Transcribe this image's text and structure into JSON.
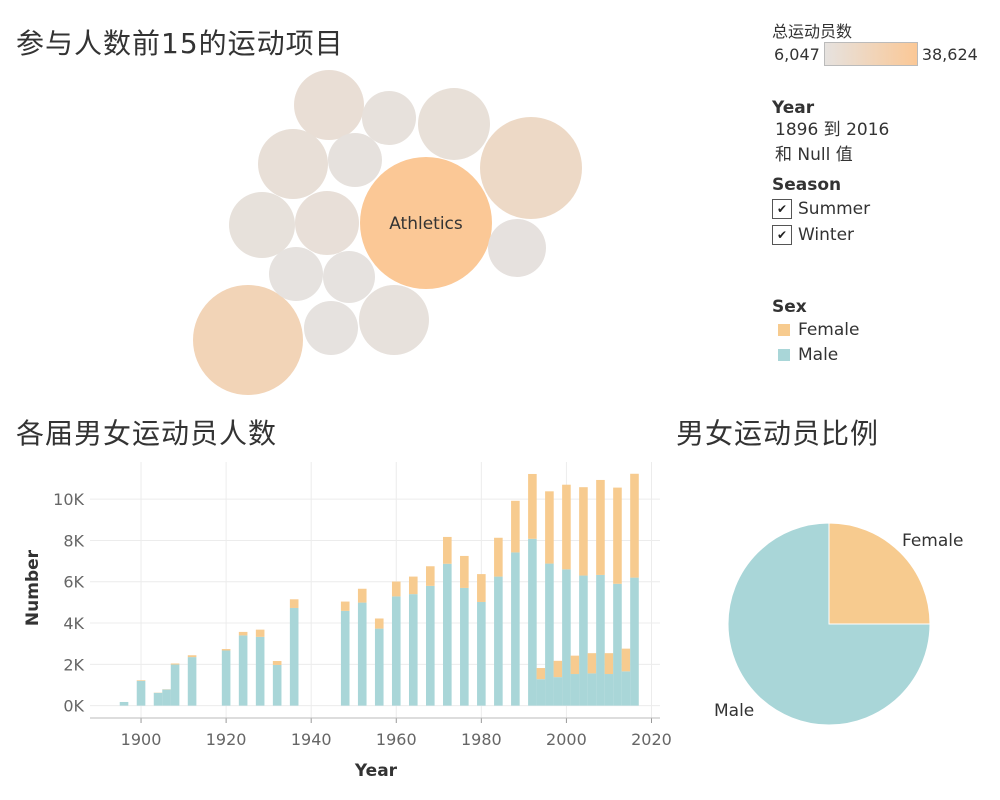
{
  "titles": {
    "bubble": "参与人数前15的运动项目",
    "bar": "各届男女运动员人数",
    "pie": "男女运动员比例"
  },
  "legend": {
    "color_title": "总运动员数",
    "color_min": "6,047",
    "color_max": "38,624",
    "color_low_hex": "#e6e2df",
    "color_high_hex": "#fbc896",
    "year_title": "Year",
    "year_range": "1896 到 2016",
    "year_null": "和 Null 值",
    "season_title": "Season",
    "season_options": [
      {
        "label": "Summer",
        "checked": true
      },
      {
        "label": "Winter",
        "checked": true
      }
    ],
    "sex_title": "Sex",
    "sex_items": [
      {
        "label": "Female",
        "color": "#f7cb8f"
      },
      {
        "label": "Male",
        "color": "#a9d6d8"
      }
    ]
  },
  "chart_data": [
    {
      "type": "bubble",
      "title": "参与人数前15的运动项目",
      "labels": [
        "Athletics"
      ],
      "values": [
        38624,
        24000,
        17000,
        10500,
        9000,
        9500,
        7800,
        9200,
        7600,
        7300,
        6800,
        6700,
        6200,
        6100,
        6047
      ],
      "color_scale": {
        "min": 6047,
        "max": 38624
      }
    },
    {
      "type": "bar",
      "title": "各届男女运动员人数",
      "xlabel": "Year",
      "ylabel": "Number",
      "xlim": [
        1888,
        2022
      ],
      "ylim": [
        -600,
        11800
      ],
      "xticks": [
        1900,
        1920,
        1940,
        1960,
        1980,
        2000,
        2020
      ],
      "xtick_labels": [
        "1900",
        "1920",
        "1940",
        "1960",
        "1980",
        "2000",
        "2020"
      ],
      "yticks": [
        0,
        2000,
        4000,
        6000,
        8000,
        10000
      ],
      "ytick_labels": [
        "0K",
        "2K",
        "4K",
        "6K",
        "8K",
        "10K"
      ],
      "series_names": [
        "Male",
        "Female"
      ],
      "series_colors": [
        "#a9d6d8",
        "#f7cb8f"
      ],
      "bars": [
        {
          "year": 1896,
          "male": 176,
          "female": 0
        },
        {
          "year": 1900,
          "male": 1200,
          "female": 30
        },
        {
          "year": 1904,
          "male": 620,
          "female": 10
        },
        {
          "year": 1906,
          "male": 780,
          "female": 10
        },
        {
          "year": 1908,
          "male": 1990,
          "female": 50
        },
        {
          "year": 1912,
          "male": 2350,
          "female": 90
        },
        {
          "year": 1920,
          "male": 2670,
          "female": 70
        },
        {
          "year": 1924,
          "male": 3400,
          "female": 170
        },
        {
          "year": 1928,
          "male": 3330,
          "female": 350
        },
        {
          "year": 1932,
          "male": 1970,
          "female": 190
        },
        {
          "year": 1936,
          "male": 4730,
          "female": 420
        },
        {
          "year": 1948,
          "male": 4590,
          "female": 450
        },
        {
          "year": 1952,
          "male": 4990,
          "female": 670
        },
        {
          "year": 1956,
          "male": 3730,
          "female": 490
        },
        {
          "year": 1960,
          "male": 5290,
          "female": 720
        },
        {
          "year": 1964,
          "male": 5400,
          "female": 850
        },
        {
          "year": 1968,
          "male": 5800,
          "female": 950
        },
        {
          "year": 1972,
          "male": 6870,
          "female": 1300
        },
        {
          "year": 1976,
          "male": 5700,
          "female": 1550
        },
        {
          "year": 1980,
          "male": 5020,
          "female": 1350
        },
        {
          "year": 1984,
          "male": 6250,
          "female": 1880
        },
        {
          "year": 1988,
          "male": 7420,
          "female": 2500
        },
        {
          "year": 1992,
          "male": 8080,
          "female": 3140
        },
        {
          "year": 1994,
          "male": 1280,
          "female": 540
        },
        {
          "year": 1996,
          "male": 6880,
          "female": 3500
        },
        {
          "year": 1998,
          "male": 1380,
          "female": 790
        },
        {
          "year": 2000,
          "male": 6600,
          "female": 4100
        },
        {
          "year": 2002,
          "male": 1530,
          "female": 890
        },
        {
          "year": 2004,
          "male": 6300,
          "female": 4280
        },
        {
          "year": 2006,
          "male": 1560,
          "female": 980
        },
        {
          "year": 2008,
          "male": 6330,
          "female": 4600
        },
        {
          "year": 2010,
          "male": 1530,
          "female": 1010
        },
        {
          "year": 2012,
          "male": 5900,
          "female": 4660
        },
        {
          "year": 2014,
          "male": 1660,
          "female": 1100
        },
        {
          "year": 2016,
          "male": 6200,
          "female": 5030
        }
      ]
    },
    {
      "type": "pie",
      "title": "男女运动员比例",
      "labels": [
        "Female",
        "Male"
      ],
      "values": [
        25,
        75
      ],
      "colors": [
        "#f7cb8f",
        "#a9d6d8"
      ]
    }
  ]
}
